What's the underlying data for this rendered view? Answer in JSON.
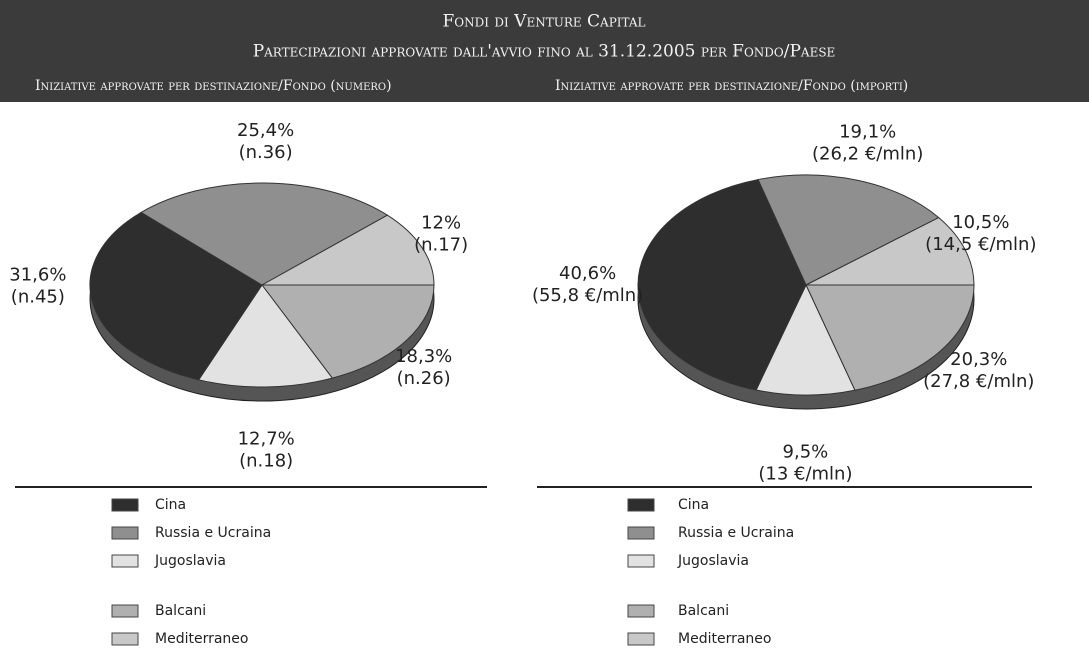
{
  "header": {
    "title": "Fondi di Venture Capital",
    "subtitle": "Partecipazioni approvate dall'avvio fino al 31.12.2005 per Fondo/Paese"
  },
  "chart_data": [
    {
      "type": "pie",
      "title": "Iniziative approvate per destinazione/Fondo (numero)",
      "categories": [
        "Cina",
        "Russia e Ucraina",
        "Jugoslavia",
        "Balcani",
        "Mediterraneo"
      ],
      "colors": [
        "#2e2e2e",
        "#8f8f8f",
        "#e2e2e2",
        "#b0b0b0",
        "#c8c8c8"
      ],
      "values": [
        31.6,
        25.4,
        12.7,
        18.3,
        12
      ],
      "value_labels": [
        "31,6%",
        "25,4%",
        "12,7%",
        "18,3%",
        "12%"
      ],
      "counts": [
        45,
        36,
        18,
        26,
        17
      ],
      "count_labels": [
        "(n.45)",
        "(n.36)",
        "(n.18)",
        "(n.26)",
        "(n.17)"
      ]
    },
    {
      "type": "pie",
      "title": "Iniziative approvate per destinazione/Fondo (importi)",
      "categories": [
        "Cina",
        "Russia e Ucraina",
        "Jugoslavia",
        "Balcani",
        "Mediterraneo"
      ],
      "colors": [
        "#2e2e2e",
        "#8f8f8f",
        "#e2e2e2",
        "#b0b0b0",
        "#c8c8c8"
      ],
      "values": [
        40.6,
        19.1,
        9.5,
        20.3,
        10.5
      ],
      "value_labels": [
        "40,6%",
        "19,1%",
        "9,5%",
        "20,3%",
        "10,5%"
      ],
      "counts": [
        55.8,
        26.2,
        13,
        27.8,
        14.5
      ],
      "count_labels": [
        "(55,8 €/mln)",
        "(26,2 €/mln)",
        "(13 €/mln)",
        "(27,8 €/mln)",
        "(14,5 €/mln)"
      ]
    }
  ]
}
